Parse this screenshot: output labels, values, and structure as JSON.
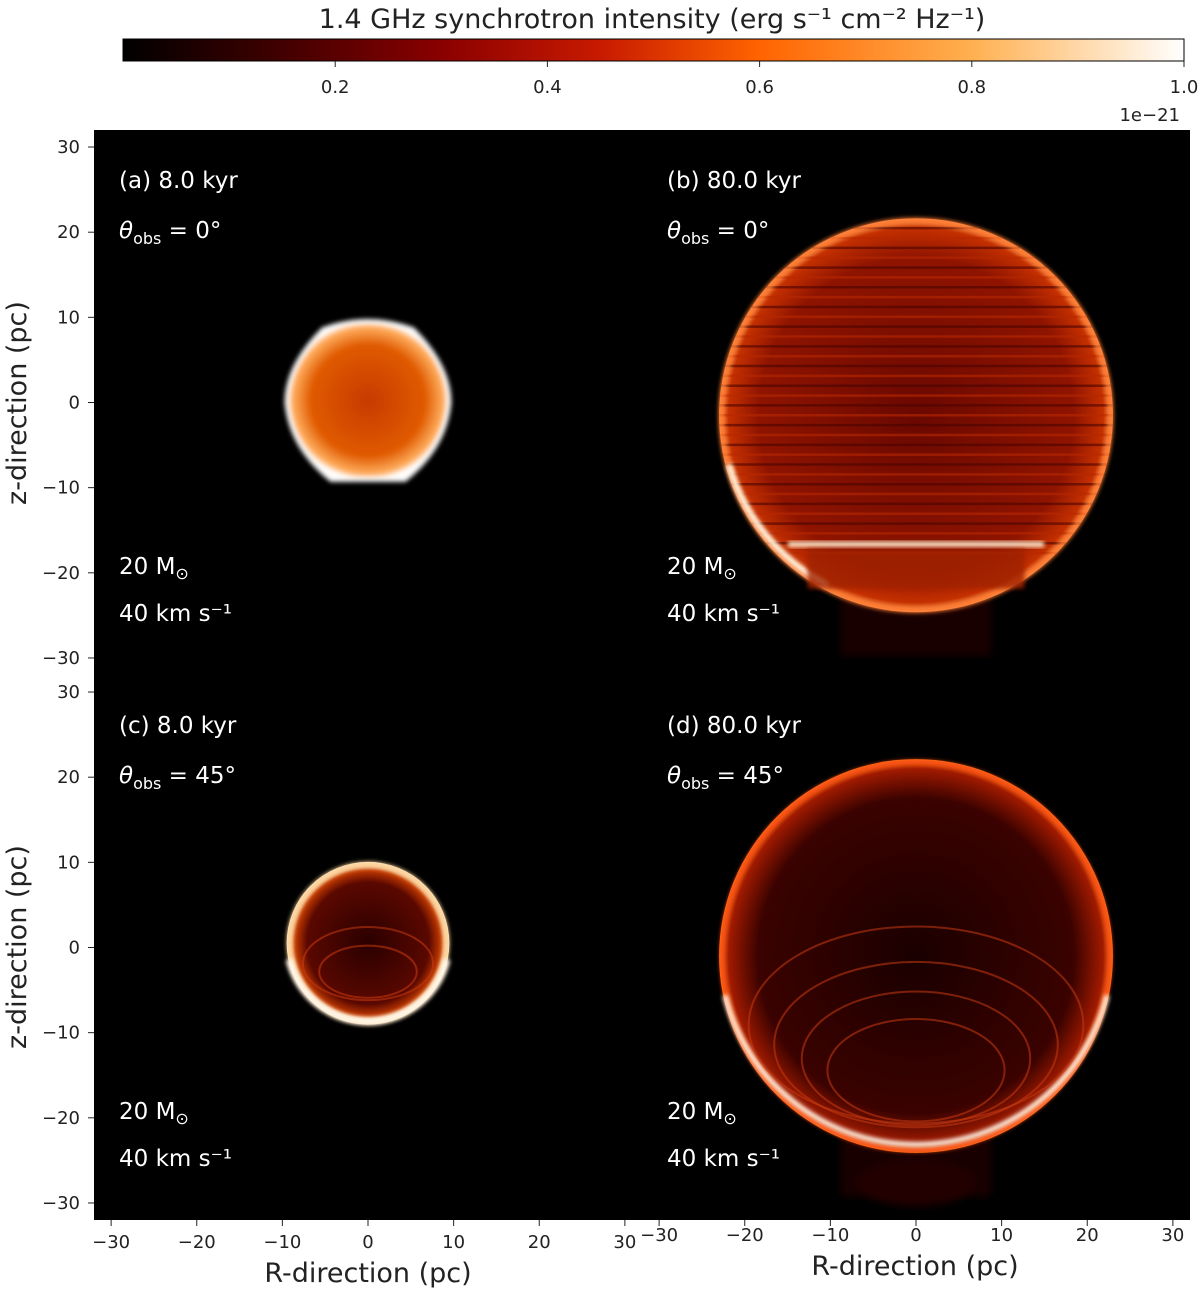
{
  "chart_data": {
    "type": "heatmap",
    "colorbar": {
      "label_text": "1.4 GHz synchrotron intensity (erg s⁻¹ cm⁻² Hz⁻¹)",
      "ticks": [
        0.2,
        0.4,
        0.6,
        0.8,
        1.0
      ],
      "tick_labels": [
        "0.2",
        "0.4",
        "0.6",
        "0.8",
        "1.0"
      ],
      "range": [
        0.0,
        1.0
      ],
      "multiplier": "1e−21",
      "colormap": "gist_heat",
      "colors": [
        "#000000",
        "#3d0000",
        "#8a0000",
        "#c81a00",
        "#ff6400",
        "#ffb050",
        "#ffffff"
      ]
    },
    "xlabel": "R-direction (pc)",
    "ylabel": "z-direction (pc)",
    "xlim": [
      -32,
      32
    ],
    "ylim": [
      -32,
      32
    ],
    "x_ticks": [
      -30,
      -20,
      -10,
      0,
      10,
      20,
      30
    ],
    "x_tick_labels": [
      "−30",
      "−20",
      "−10",
      "0",
      "10",
      "20",
      "30"
    ],
    "y_ticks": [
      30,
      20,
      10,
      0,
      -10,
      -20,
      -30
    ],
    "y_tick_labels": [
      "30",
      "20",
      "10",
      "0",
      "−10",
      "−20",
      "−30"
    ],
    "panels": [
      {
        "id": "a",
        "label": "(a) 8.0 kyr",
        "time_kyr": 8.0,
        "theta_obs_deg": 0,
        "theta_label": "θ",
        "theta_sub": "obs",
        "theta_value": " = 0°",
        "mass_label": "20 M",
        "mass_sub": "⊙",
        "velocity_label": "40 km s⁻¹",
        "remnant_radius_pc": 9.5,
        "remnant_center_z_pc": 0
      },
      {
        "id": "b",
        "label": "(b) 80.0 kyr",
        "time_kyr": 80.0,
        "theta_obs_deg": 0,
        "theta_label": "θ",
        "theta_sub": "obs",
        "theta_value": " = 0°",
        "mass_label": "20 M",
        "mass_sub": "⊙",
        "velocity_label": "40 km s⁻¹",
        "remnant_radius_pc": 23,
        "remnant_center_z_pc": -1.5
      },
      {
        "id": "c",
        "label": "(c) 8.0 kyr",
        "time_kyr": 8.0,
        "theta_obs_deg": 45,
        "theta_label": "θ",
        "theta_sub": "obs",
        "theta_value": " = 45°",
        "mass_label": "20 M",
        "mass_sub": "⊙",
        "velocity_label": "40 km s⁻¹",
        "remnant_radius_pc": 9.5,
        "remnant_center_z_pc": 0.5
      },
      {
        "id": "d",
        "label": "(d) 80.0 kyr",
        "time_kyr": 80.0,
        "theta_obs_deg": 45,
        "theta_label": "θ",
        "theta_sub": "obs",
        "theta_value": " = 45°",
        "mass_label": "20 M",
        "mass_sub": "⊙",
        "velocity_label": "40 km s⁻¹",
        "remnant_radius_pc": 23,
        "remnant_center_z_pc": -1
      }
    ]
  }
}
